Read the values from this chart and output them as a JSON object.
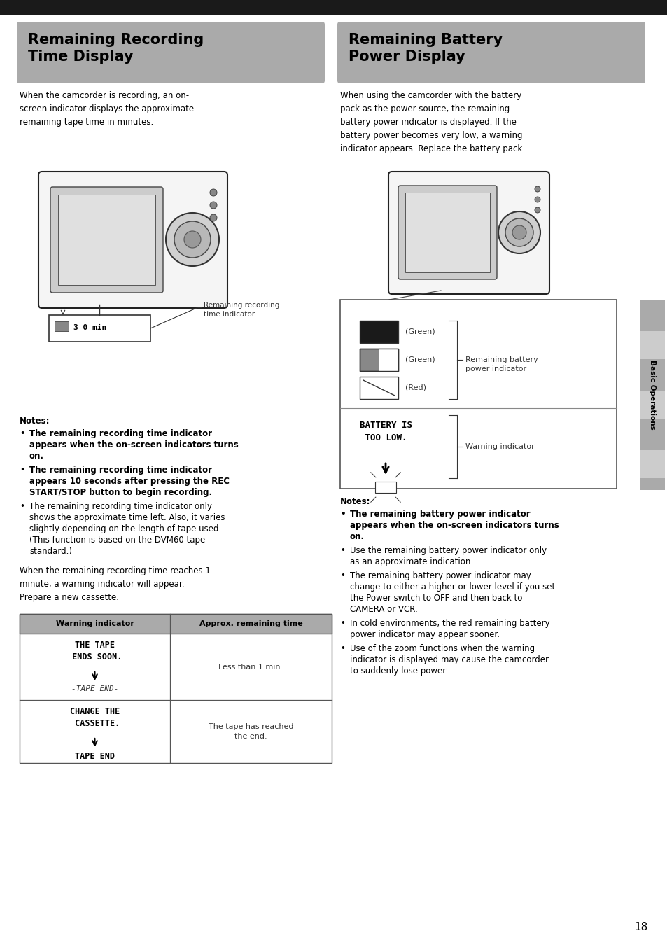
{
  "page_bg": "#ffffff",
  "top_bar_color": "#1a1a1a",
  "header_bg": "#aaaaaa",
  "left_header_text": "Remaining Recording\nTime Display",
  "right_header_text": "Remaining Battery\nPower Display",
  "header_text_color": "#000000",
  "header_font_size": 15,
  "body_font_size": 8.5,
  "note_bold_font_size": 8.5,
  "small_font_size": 7.5,
  "page_number": "18",
  "sidebar_label": "Basic Operations"
}
